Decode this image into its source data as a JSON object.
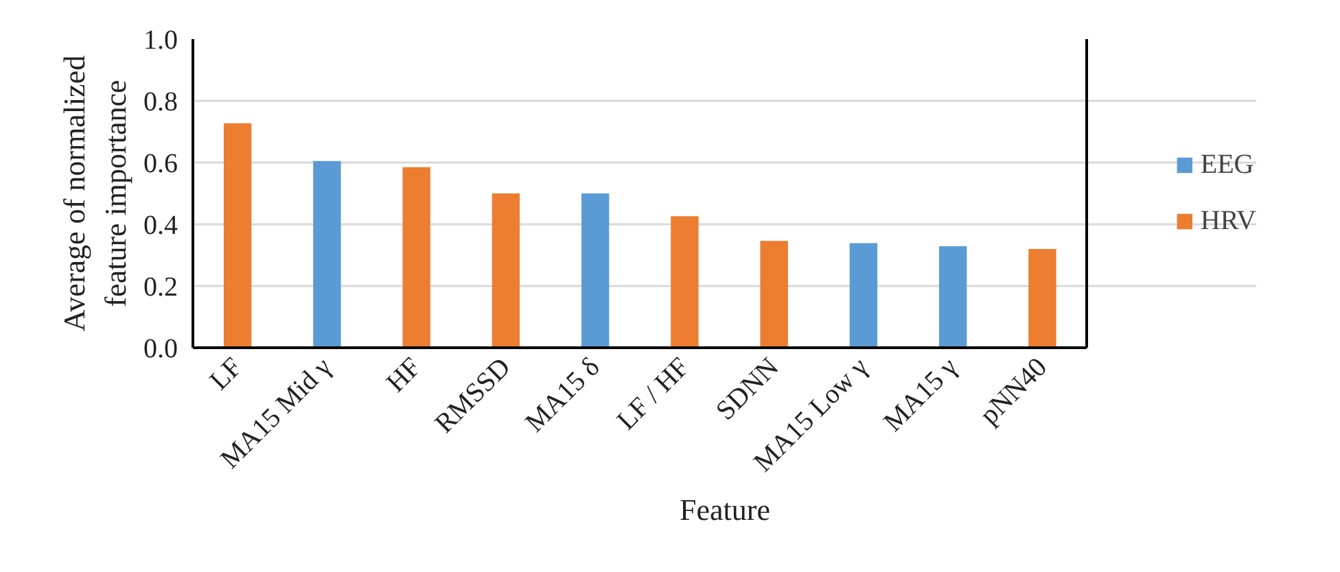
{
  "chart_data": {
    "type": "bar",
    "xlabel": "Feature",
    "ylabel": "Average of normalized\nfeature importance",
    "categories": [
      "LF",
      "MA15 Mid γ",
      "HF",
      "RMSSD",
      "MA15 δ",
      "LF / HF",
      "SDNN",
      "MA15 Low γ",
      "MA15 γ",
      "pNN40"
    ],
    "series": [
      {
        "name": "EEG",
        "color": "#5b9bd5",
        "values": [
          null,
          0.605,
          null,
          null,
          0.5,
          null,
          null,
          0.339,
          0.329,
          null
        ]
      },
      {
        "name": "HRV",
        "color": "#ed7d31",
        "values": [
          0.727,
          null,
          0.585,
          0.5,
          null,
          0.426,
          0.346,
          null,
          null,
          0.32
        ]
      }
    ],
    "ylim": [
      0,
      1.0
    ],
    "yticks": [
      {
        "value": 0,
        "label": "0.0"
      },
      0.2,
      0.4,
      0.6,
      0.8,
      {
        "value": 1,
        "label": "1.0"
      }
    ],
    "grid": "y",
    "legend": "right"
  }
}
